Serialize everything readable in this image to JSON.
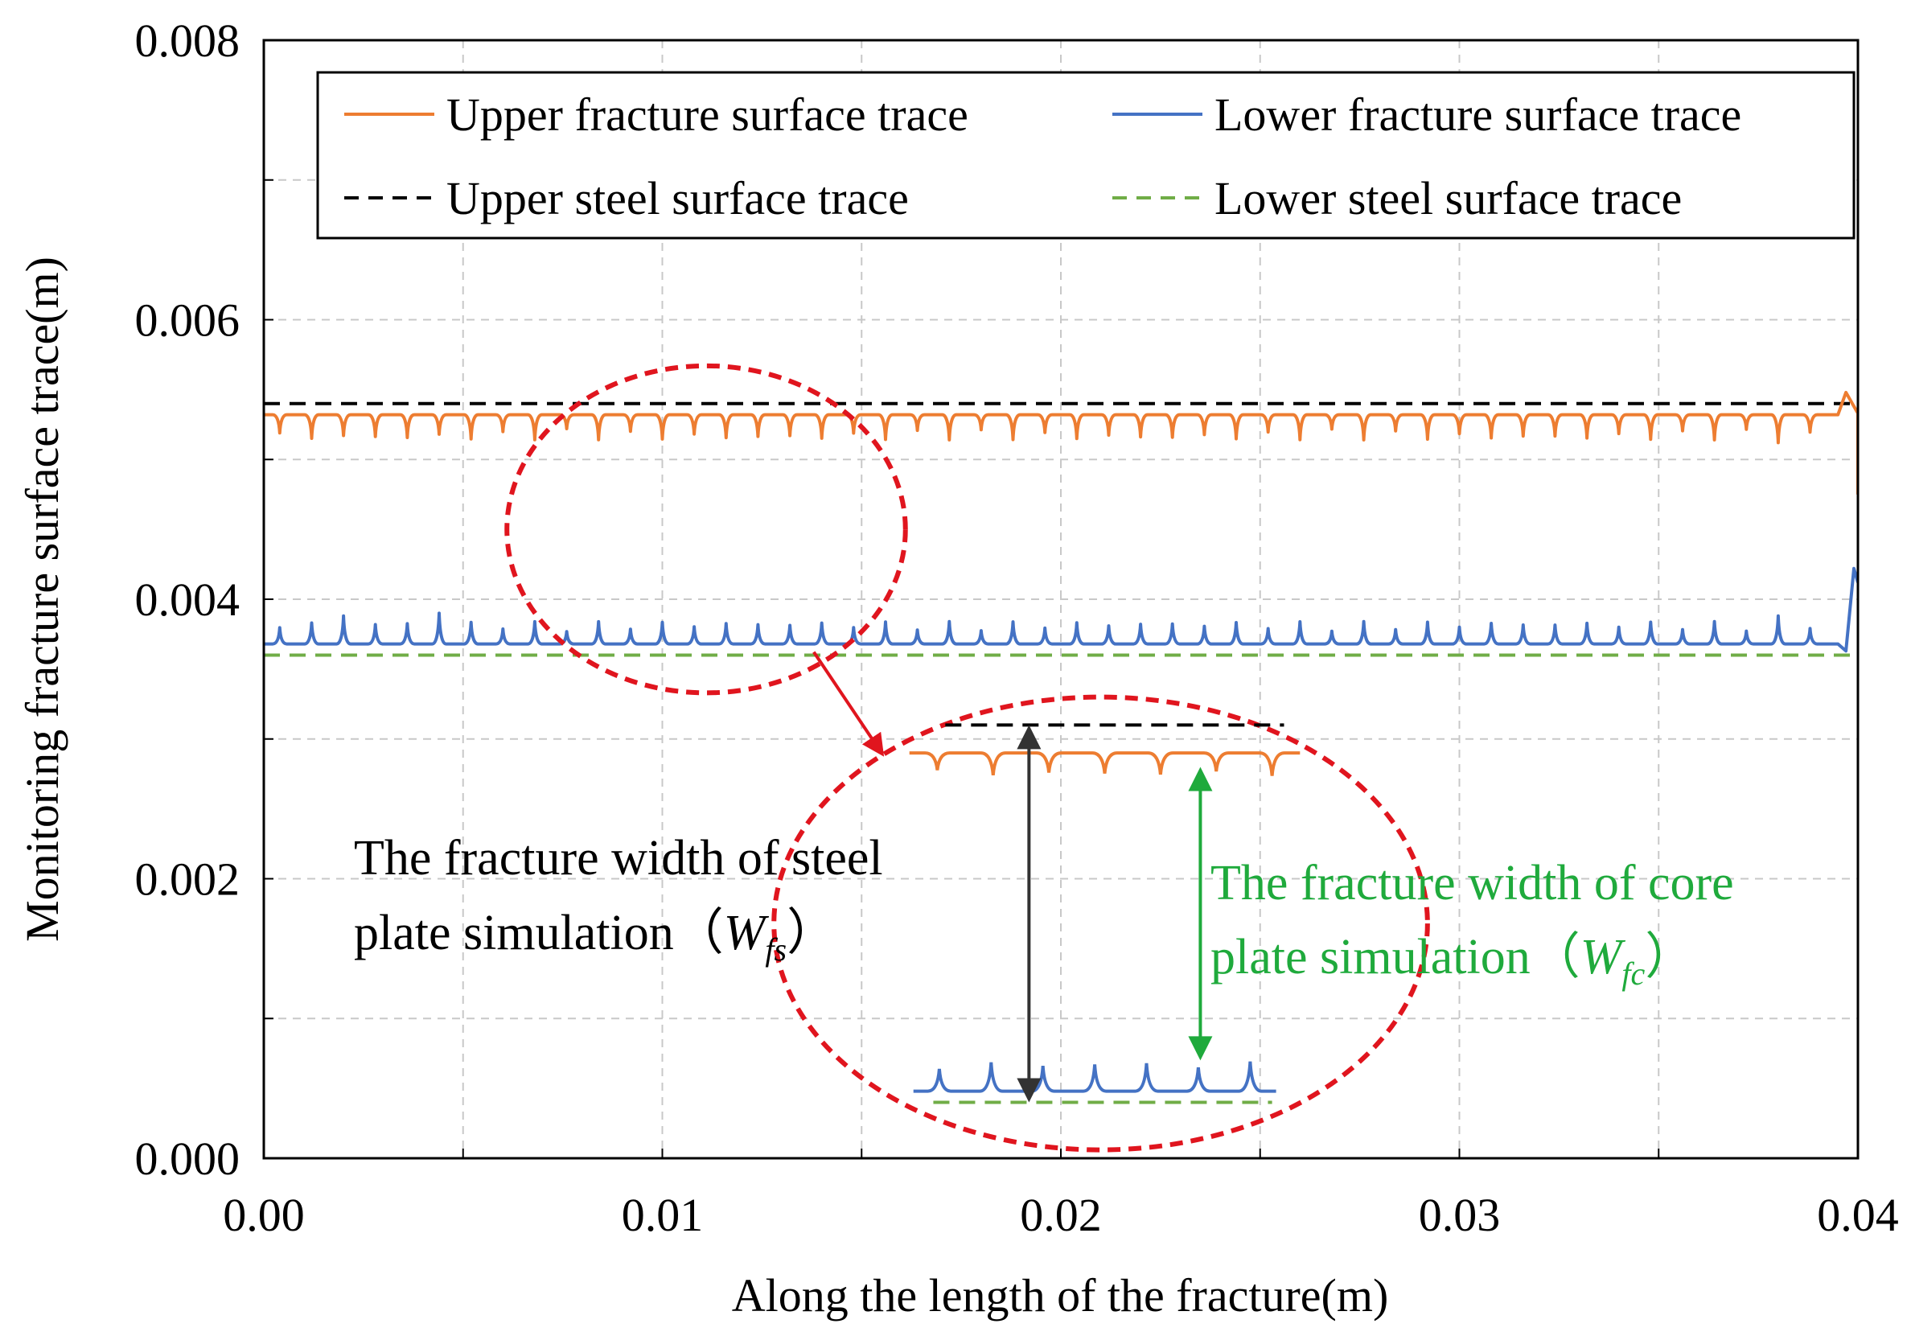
{
  "chart_data": {
    "type": "line",
    "title": "",
    "xlabel": "Along the length of the fracture(m)",
    "ylabel": "Monitoring fracture surface trace(m)",
    "xlim": [
      0,
      0.04
    ],
    "ylim": [
      0,
      0.008
    ],
    "x_ticks": [
      0,
      0.005,
      0.01,
      0.015,
      0.02,
      0.025,
      0.03,
      0.035,
      0.04
    ],
    "y_ticks": [
      0,
      0.001,
      0.002,
      0.003,
      0.004,
      0.005,
      0.006,
      0.007,
      0.008
    ],
    "x_tick_labels": [
      {
        "value": 0,
        "label": "0.00"
      },
      {
        "value": 0.01,
        "label": "0.01"
      },
      {
        "value": 0.02,
        "label": "0.02"
      },
      {
        "value": 0.03,
        "label": "0.03"
      },
      {
        "value": 0.04,
        "label": "0.04"
      }
    ],
    "y_tick_labels": [
      {
        "value": 0,
        "label": "0.000"
      },
      {
        "value": 0.002,
        "label": "0.002"
      },
      {
        "value": 0.004,
        "label": "0.004"
      },
      {
        "value": 0.006,
        "label": "0.006"
      },
      {
        "value": 0.008,
        "label": "0.008"
      }
    ],
    "grid": true,
    "legend_position": "top",
    "series": [
      {
        "name": "Upper fracture surface trace",
        "color": "#ED7D31",
        "style": "solid",
        "base": 0.00532,
        "spike_spacing": 0.0008,
        "spike_depth": 0.00018,
        "deep_spikes": [
          {
            "x": 0.004,
            "y": 0.00508
          },
          {
            "x": 0.0378,
            "y": 0.00512
          }
        ],
        "end": {
          "x": 0.0399,
          "y": 0.00548,
          "final_y": 0.00475
        }
      },
      {
        "name": "Lower fracture surface trace",
        "color": "#4472C4",
        "style": "solid",
        "base": 0.00368,
        "spike_spacing": 0.0008,
        "spike_height": 0.00016,
        "tall_spikes": [
          {
            "x": 0.0019,
            "y": 0.00388
          },
          {
            "x": 0.0048,
            "y": 0.0039
          },
          {
            "x": 0.0383,
            "y": 0.00388
          }
        ],
        "end": {
          "x": 0.04,
          "y": 0.00422
        }
      },
      {
        "name": "Upper steel surface trace",
        "color": "#000000",
        "style": "dashed",
        "y": 0.0054
      },
      {
        "name": "Lower steel surface trace",
        "color": "#70AD47",
        "style": "dashed",
        "y": 0.0036
      }
    ],
    "annotations": {
      "source_region": {
        "cx": 0.0111,
        "cy": 0.0045,
        "rx": 0.005,
        "ry": 0.00117
      },
      "zoom_region": {
        "cx": 0.021,
        "cy": 0.00168,
        "rx": 0.0082,
        "ry": 0.00162
      },
      "zoom_upper_trace_y": 0.0029,
      "zoom_upper_dash": {
        "x_start": 0.0171,
        "x_end": 0.0256,
        "y": 0.0031
      },
      "zoom_lower_trace_y": 0.00048,
      "zoom_lower_dash": {
        "x_start": 0.0168,
        "x_end": 0.0253,
        "y": 0.0004
      },
      "zoom_x_range": [
        0.0162,
        0.026
      ],
      "steel_width_arrow": {
        "x": 0.0192,
        "y_top": 0.0031,
        "y_bottom": 0.0004,
        "color": "#333333"
      },
      "core_width_arrow": {
        "x": 0.0235,
        "y_top": 0.0028,
        "y_bottom": 0.0007,
        "color": "#1FAA3C"
      },
      "steel_width_label": {
        "line1": "The fracture width of steel",
        "line2_text": "plate simulation（",
        "symbol": "W",
        "subscript": "fs",
        "closing": "）",
        "color": "#000000"
      },
      "core_width_label": {
        "line1": "The fracture width of core",
        "line2_text": "plate simulation（",
        "symbol": "W",
        "subscript": "fc",
        "closing": "）",
        "color": "#1FAA3C"
      },
      "ellipse_color": "#E0151E"
    }
  }
}
